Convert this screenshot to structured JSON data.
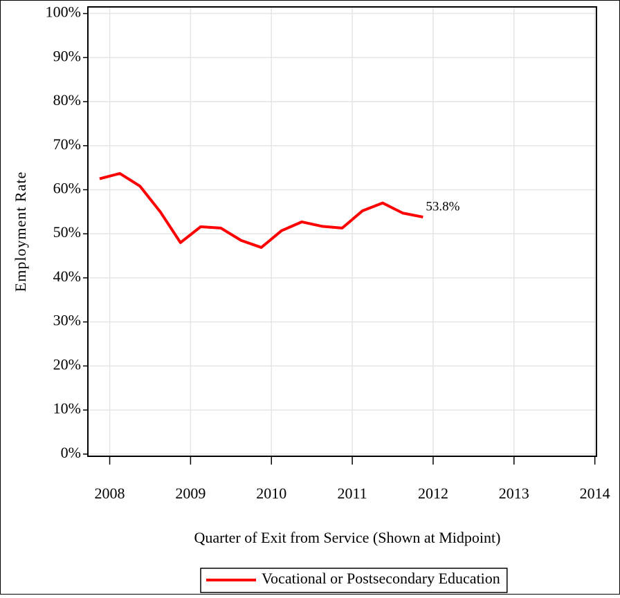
{
  "chart_data": {
    "type": "line",
    "x_label": "Quarter of Exit from Service (Shown at Midpoint)",
    "y_label": "Employment Rate",
    "x": [
      2007.875,
      2008.125,
      2008.375,
      2008.625,
      2008.875,
      2009.125,
      2009.375,
      2009.625,
      2009.875,
      2010.125,
      2010.375,
      2010.625,
      2010.875,
      2011.125,
      2011.375,
      2011.625,
      2011.875
    ],
    "series": [
      {
        "name": "Vocational or Postsecondary Education",
        "color": "#ff0000",
        "values": [
          62.5,
          63.7,
          60.8,
          55,
          48,
          51.6,
          51.3,
          48.5,
          46.9,
          50.7,
          52.7,
          51.7,
          51.3,
          55.2,
          57,
          54.7,
          53.8
        ],
        "value_labels": [
          null,
          null,
          null,
          null,
          null,
          null,
          null,
          null,
          null,
          null,
          null,
          null,
          null,
          null,
          null,
          null,
          "53.8%"
        ]
      }
    ],
    "xlim": [
      2007.73,
      2014.02
    ],
    "xticks": [
      2008,
      2009,
      2010,
      2011,
      2012,
      2013,
      2014
    ],
    "ylim": [
      -0.5,
      101.5
    ],
    "yticks": [
      {
        "value": 0,
        "label": "0%"
      },
      {
        "value": 10,
        "label": "10%"
      },
      {
        "value": 20,
        "label": "20%"
      },
      {
        "value": 30,
        "label": "30%"
      },
      {
        "value": 40,
        "label": "40%"
      },
      {
        "value": 50,
        "label": "50%"
      },
      {
        "value": 60,
        "label": "60%"
      },
      {
        "value": 70,
        "label": "70%"
      },
      {
        "value": 80,
        "label": "80%"
      },
      {
        "value": 90,
        "label": "90%"
      },
      {
        "value": 100,
        "label": "100%"
      }
    ],
    "grid": true,
    "legend": "bottom"
  }
}
